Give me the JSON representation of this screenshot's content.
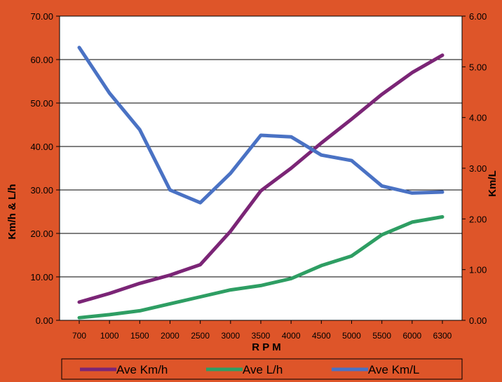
{
  "chart_data": {
    "type": "line",
    "categories": [
      "700",
      "1000",
      "1500",
      "2000",
      "2500",
      "3000",
      "3500",
      "4000",
      "4500",
      "5000",
      "5500",
      "6000",
      "6300"
    ],
    "xlabel": "R P M",
    "ylabel": "Km/h & L/h",
    "y2label": "Km/L",
    "ylim": [
      0,
      70
    ],
    "y2lim": [
      0,
      6
    ],
    "yticks": [
      "0.00",
      "10.00",
      "20.00",
      "30.00",
      "40.00",
      "50.00",
      "60.00",
      "70.00"
    ],
    "y2ticks": [
      "0.00",
      "1.00",
      "2.00",
      "3.00",
      "4.00",
      "5.00",
      "6.00"
    ],
    "grid": true,
    "legend_position": "bottom",
    "series": [
      {
        "name": "Ave Km/h",
        "axis": "left",
        "color": "#7b2576",
        "values": [
          4.2,
          6.2,
          8.5,
          10.4,
          12.8,
          20.5,
          29.8,
          35.0,
          40.8,
          46.3,
          52.0,
          57.0,
          61.0
        ]
      },
      {
        "name": "Ave L/h",
        "axis": "left",
        "color": "#2e9e63",
        "values": [
          0.6,
          1.3,
          2.2,
          3.8,
          5.4,
          7.0,
          8.0,
          9.6,
          12.6,
          14.8,
          19.7,
          22.6,
          23.8
        ]
      },
      {
        "name": "Ave Km/L",
        "axis": "right",
        "color": "#4a72c4",
        "values": [
          5.38,
          4.48,
          3.76,
          2.57,
          2.32,
          2.9,
          3.65,
          3.62,
          3.26,
          3.15,
          2.65,
          2.51,
          2.53
        ]
      }
    ]
  }
}
